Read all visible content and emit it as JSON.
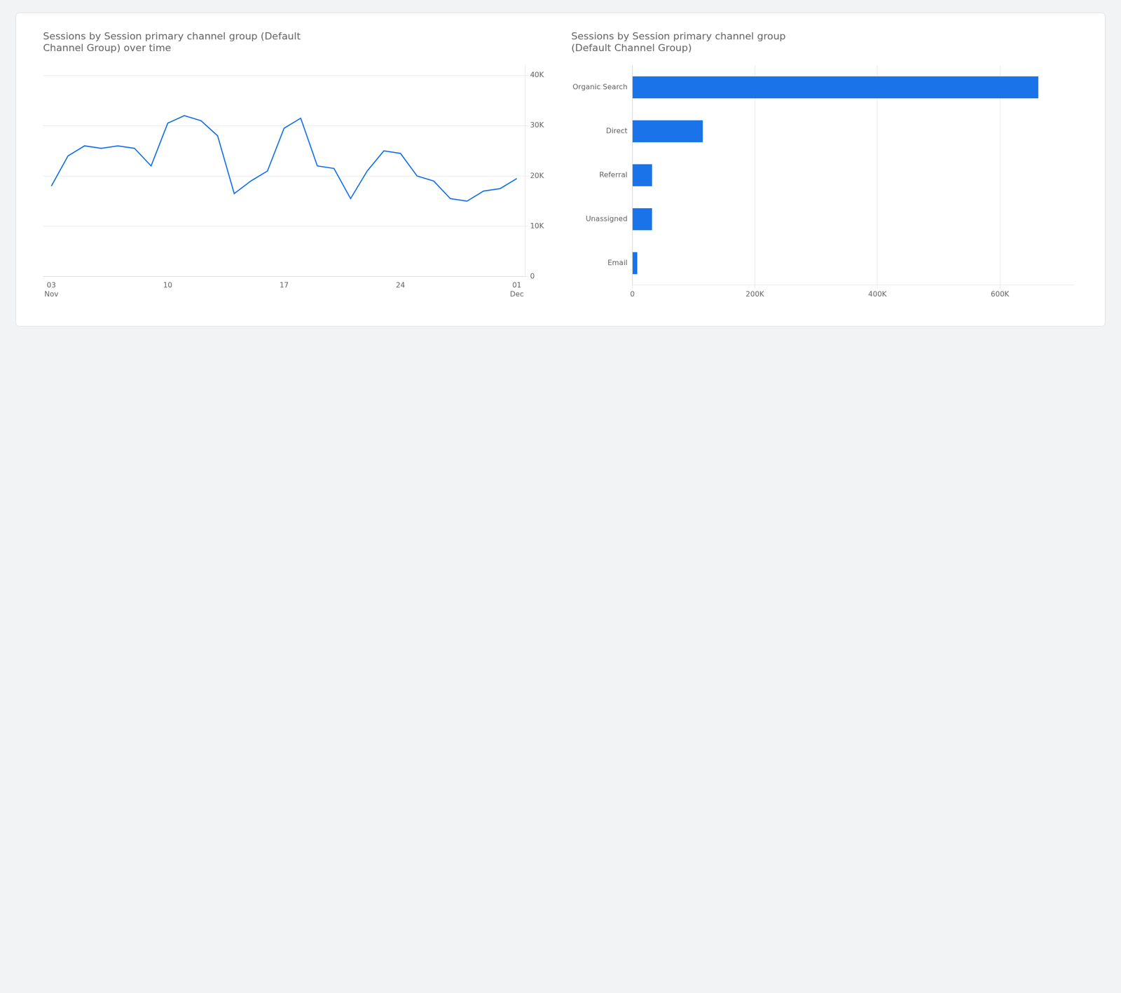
{
  "chart_data": [
    {
      "type": "line",
      "title": "Sessions by Session primary channel group (Default\nChannel Group) over time",
      "categories": [
        "03\nNov",
        null,
        null,
        null,
        null,
        null,
        null,
        "10",
        null,
        null,
        null,
        null,
        null,
        null,
        "17",
        null,
        null,
        null,
        null,
        null,
        null,
        "24",
        null,
        null,
        null,
        null,
        null,
        null,
        "01\nDec"
      ],
      "values": [
        18000,
        24000,
        26000,
        25500,
        26000,
        25500,
        22000,
        30500,
        32000,
        31000,
        28000,
        16500,
        19000,
        21000,
        29500,
        31500,
        22000,
        21500,
        15500,
        21000,
        25000,
        24500,
        20000,
        19000,
        15500,
        15000,
        17000,
        17500,
        19500
      ],
      "color": "#1a73e8",
      "ylim": [
        0,
        42000
      ],
      "yticks": [
        0,
        {
          "value": 10000,
          "label": "10K"
        },
        {
          "value": 20000,
          "label": "20K"
        },
        {
          "value": 30000,
          "label": "30K"
        },
        {
          "value": 40000,
          "label": "40K"
        }
      ],
      "grid": true
    },
    {
      "type": "bar",
      "title": "Sessions by Session primary channel group\n(Default Channel Group)",
      "orientation": "horizontal",
      "categories": [
        "Organic Search",
        "Direct",
        "Referral",
        "Unassigned",
        "Email"
      ],
      "values": [
        662648,
        114970,
        32150,
        32050,
        8000
      ],
      "color": "#1a73e8",
      "xlim": [
        0,
        720000
      ],
      "xticks": [
        0,
        {
          "value": 200000,
          "label": "200K"
        },
        {
          "value": 400000,
          "label": "400K"
        },
        {
          "value": 600000,
          "label": "600K"
        }
      ],
      "grid": true
    }
  ]
}
